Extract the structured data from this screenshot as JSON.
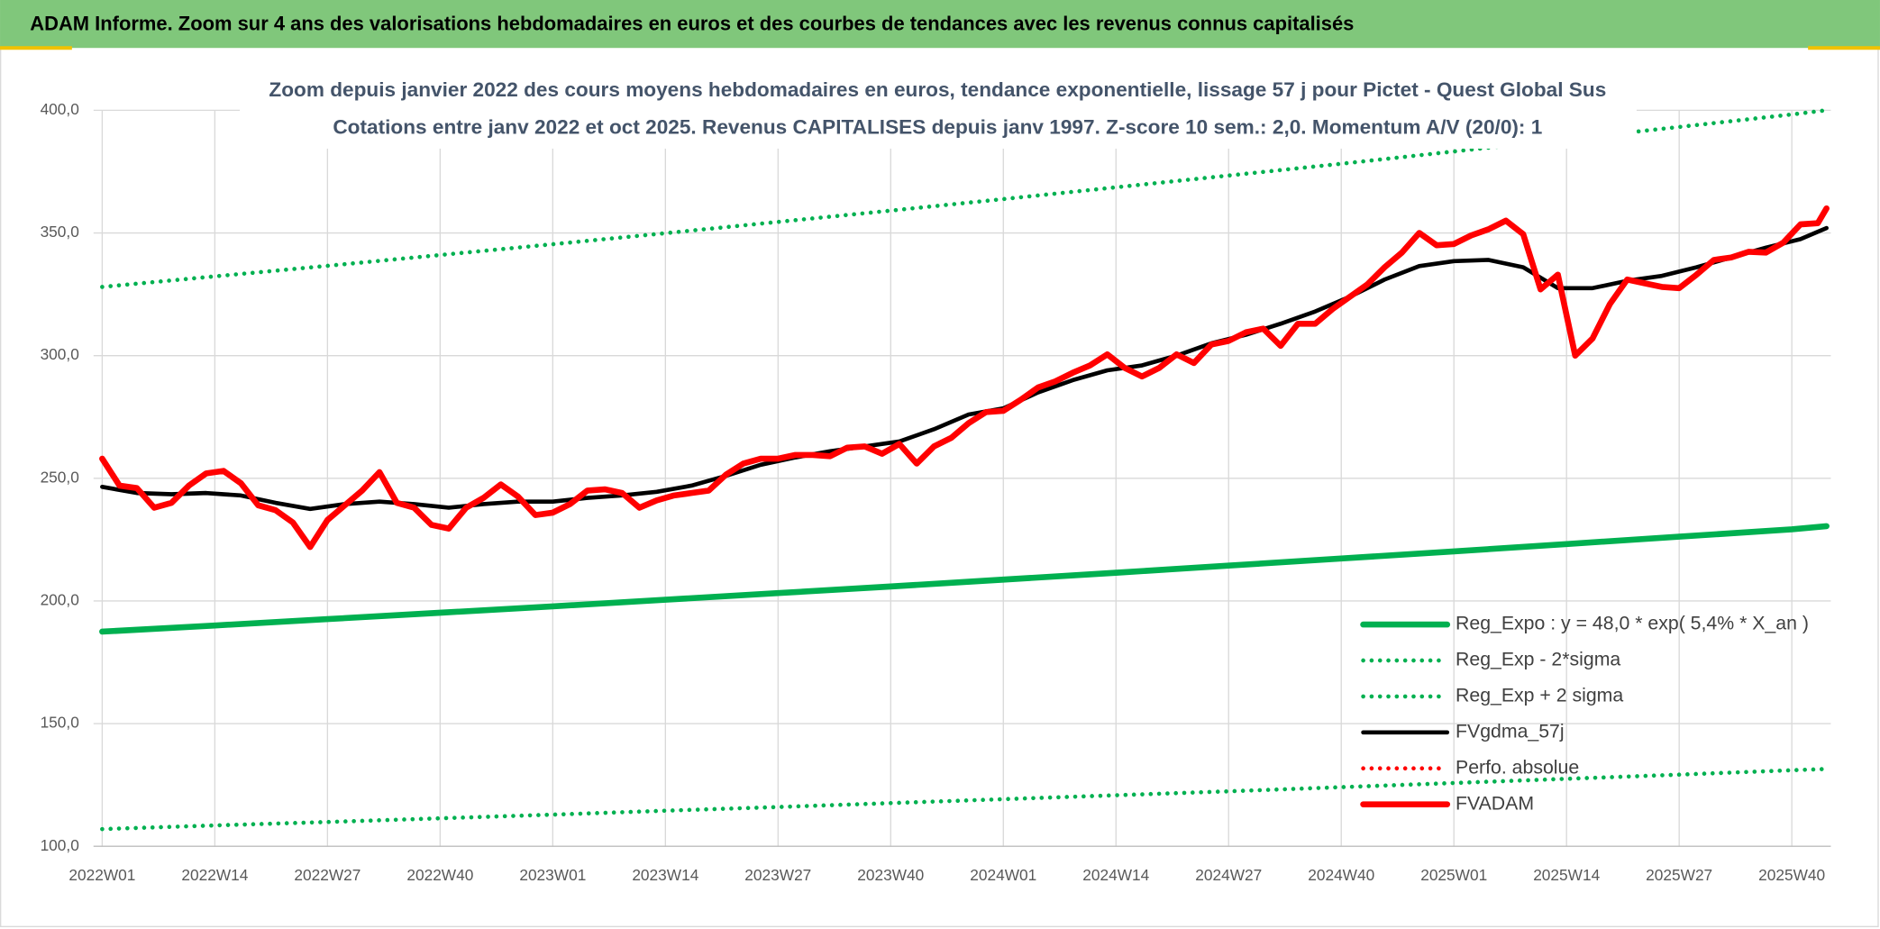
{
  "header": {
    "title": "ADAM Informe. Zoom sur 4 ans des valorisations hebdomadaires en euros et des courbes de tendances avec les revenus connus capitalisés"
  },
  "chart_data": {
    "type": "line",
    "title": "Zoom depuis janvier 2022 des cours moyens hebdomadaires en euros, tendance exponentielle, lissage 57 j pour Pictet - Quest Global Sus",
    "subtitle": "Cotations entre janv 2022 et oct 2025. Revenus CAPITALISES depuis janv 1997. Z-score 10 sem.: 2,0. Momentum A/V (20/0): 1",
    "xlim": [
      -1,
      199.5
    ],
    "xticks": [
      {
        "value": 0,
        "label": "2022W01"
      },
      {
        "value": 13,
        "label": "2022W14"
      },
      {
        "value": 26,
        "label": "2022W27"
      },
      {
        "value": 39,
        "label": "2022W40"
      },
      {
        "value": 52,
        "label": "2023W01"
      },
      {
        "value": 65,
        "label": "2023W14"
      },
      {
        "value": 78,
        "label": "2023W27"
      },
      {
        "value": 91,
        "label": "2023W40"
      },
      {
        "value": 104,
        "label": "2024W01"
      },
      {
        "value": 117,
        "label": "2024W14"
      },
      {
        "value": 130,
        "label": "2024W27"
      },
      {
        "value": 143,
        "label": "2024W40"
      },
      {
        "value": 156,
        "label": "2025W01"
      },
      {
        "value": 169,
        "label": "2025W14"
      },
      {
        "value": 182,
        "label": "2025W27"
      },
      {
        "value": 195,
        "label": "2025W40"
      }
    ],
    "ylim": [
      100,
      400
    ],
    "yticks": [
      {
        "value": 100,
        "label": "100,0"
      },
      {
        "value": 150,
        "label": "150,0"
      },
      {
        "value": 200,
        "label": "200,0"
      },
      {
        "value": 250,
        "label": "250,0"
      },
      {
        "value": 300,
        "label": "300,0"
      },
      {
        "value": 350,
        "label": "350,0"
      },
      {
        "value": 400,
        "label": "400,0"
      }
    ],
    "grid": true,
    "legend": "lower right",
    "series": [
      {
        "name": "Reg_Expo : y = 48,0 * exp( 5,4% *  X_an )",
        "color": "#00b050",
        "style": "thick",
        "x": [
          0,
          13,
          26,
          39,
          52,
          65,
          78,
          91,
          104,
          117,
          130,
          143,
          156,
          169,
          182,
          195,
          199
        ],
        "values": [
          187.5,
          190.0,
          192.6,
          195.2,
          197.8,
          200.5,
          203.2,
          205.9,
          208.7,
          211.5,
          214.4,
          217.3,
          220.2,
          223.2,
          226.2,
          229.2,
          230.5
        ]
      },
      {
        "name": "Reg_Exp - 2*sigma",
        "color": "#00b050",
        "style": "dotted",
        "x": [
          0,
          13,
          26,
          39,
          52,
          65,
          78,
          91,
          104,
          117,
          130,
          143,
          156,
          169,
          182,
          195,
          199
        ],
        "values": [
          107,
          108.5,
          109.9,
          111.4,
          112.9,
          114.5,
          116.0,
          117.6,
          119.2,
          120.8,
          122.4,
          124.1,
          125.8,
          127.5,
          129.2,
          131.0,
          131.5
        ]
      },
      {
        "name": "Reg_Exp + 2 sigma",
        "color": "#00b050",
        "style": "dotted",
        "x": [
          0,
          13,
          26,
          39,
          52,
          65,
          78,
          91,
          104,
          117,
          130,
          143,
          156,
          169,
          182,
          195,
          199
        ],
        "values": [
          328,
          332.3,
          336.6,
          341.0,
          345.4,
          349.9,
          354.5,
          359.1,
          363.8,
          368.6,
          373.4,
          378.2,
          383.2,
          388.2,
          393.2,
          398.3,
          400.0
        ]
      },
      {
        "name": "FVgdma_57j",
        "color": "#000000",
        "style": "solid",
        "x": [
          0,
          4,
          8,
          12,
          16,
          20,
          24,
          28,
          32,
          36,
          40,
          44,
          48,
          52,
          56,
          60,
          64,
          68,
          72,
          76,
          80,
          84,
          88,
          92,
          96,
          100,
          104,
          108,
          112,
          116,
          120,
          124,
          128,
          132,
          136,
          140,
          144,
          148,
          152,
          156,
          160,
          164,
          168,
          172,
          176,
          180,
          184,
          188,
          192,
          196,
          199
        ],
        "values": [
          246.5,
          244,
          243.5,
          244,
          243,
          240,
          237.5,
          239.5,
          240.5,
          239.5,
          238,
          239.5,
          240.5,
          240.5,
          242,
          243,
          244.5,
          247,
          251,
          255.5,
          258.5,
          261,
          263,
          265,
          270,
          276,
          278.5,
          285,
          290,
          294,
          296,
          300,
          305,
          308.5,
          313,
          318,
          324,
          331,
          336.5,
          338.5,
          339,
          336,
          327.5,
          327.5,
          330.5,
          332.5,
          336,
          340,
          344,
          347.5,
          352
        ]
      },
      {
        "name": "Perfo. absolue",
        "color": "#ff0000",
        "style": "dotted"
      },
      {
        "name": "FVADAM",
        "color": "#ff0000",
        "style": "thick",
        "x": [
          0,
          2,
          4,
          6,
          8,
          10,
          12,
          14,
          16,
          18,
          20,
          22,
          24,
          26,
          28,
          30,
          32,
          34,
          36,
          38,
          40,
          42,
          44,
          46,
          48,
          50,
          52,
          54,
          56,
          58,
          60,
          62,
          64,
          66,
          68,
          70,
          72,
          74,
          76,
          78,
          80,
          82,
          84,
          86,
          88,
          90,
          92,
          94,
          96,
          98,
          100,
          102,
          104,
          106,
          108,
          110,
          112,
          114,
          116,
          118,
          120,
          122,
          124,
          126,
          128,
          130,
          132,
          134,
          136,
          138,
          140,
          142,
          144,
          146,
          148,
          150,
          152,
          154,
          156,
          158,
          160,
          162,
          164,
          166,
          168,
          170,
          172,
          174,
          176,
          178,
          180,
          182,
          184,
          186,
          188,
          190,
          192,
          194,
          196,
          198,
          199
        ],
        "values": [
          258,
          247,
          246,
          238,
          240,
          247,
          252,
          253,
          248,
          239,
          237,
          232,
          222,
          233,
          239,
          245,
          252.5,
          240,
          238,
          231,
          229.5,
          238,
          242,
          247.5,
          242.5,
          235,
          236,
          239.5,
          245,
          245.5,
          244,
          238,
          241,
          243,
          244,
          245,
          251.5,
          256,
          258,
          258,
          259.5,
          259.5,
          259,
          262.5,
          263,
          260,
          264,
          256,
          263,
          266.5,
          272.5,
          277,
          277.5,
          282,
          287,
          289.5,
          293,
          296,
          300.5,
          295,
          291.5,
          295,
          300.5,
          297,
          304.5,
          306,
          309.5,
          311,
          304,
          313,
          313,
          319,
          324,
          329,
          336,
          342,
          350,
          345,
          345.5,
          349,
          351.5,
          355,
          349.5,
          327,
          333,
          300,
          307,
          321,
          331,
          329.5,
          328,
          327.5,
          333,
          339,
          340,
          342.3,
          342,
          346,
          353.5,
          354,
          360
        ]
      }
    ]
  }
}
